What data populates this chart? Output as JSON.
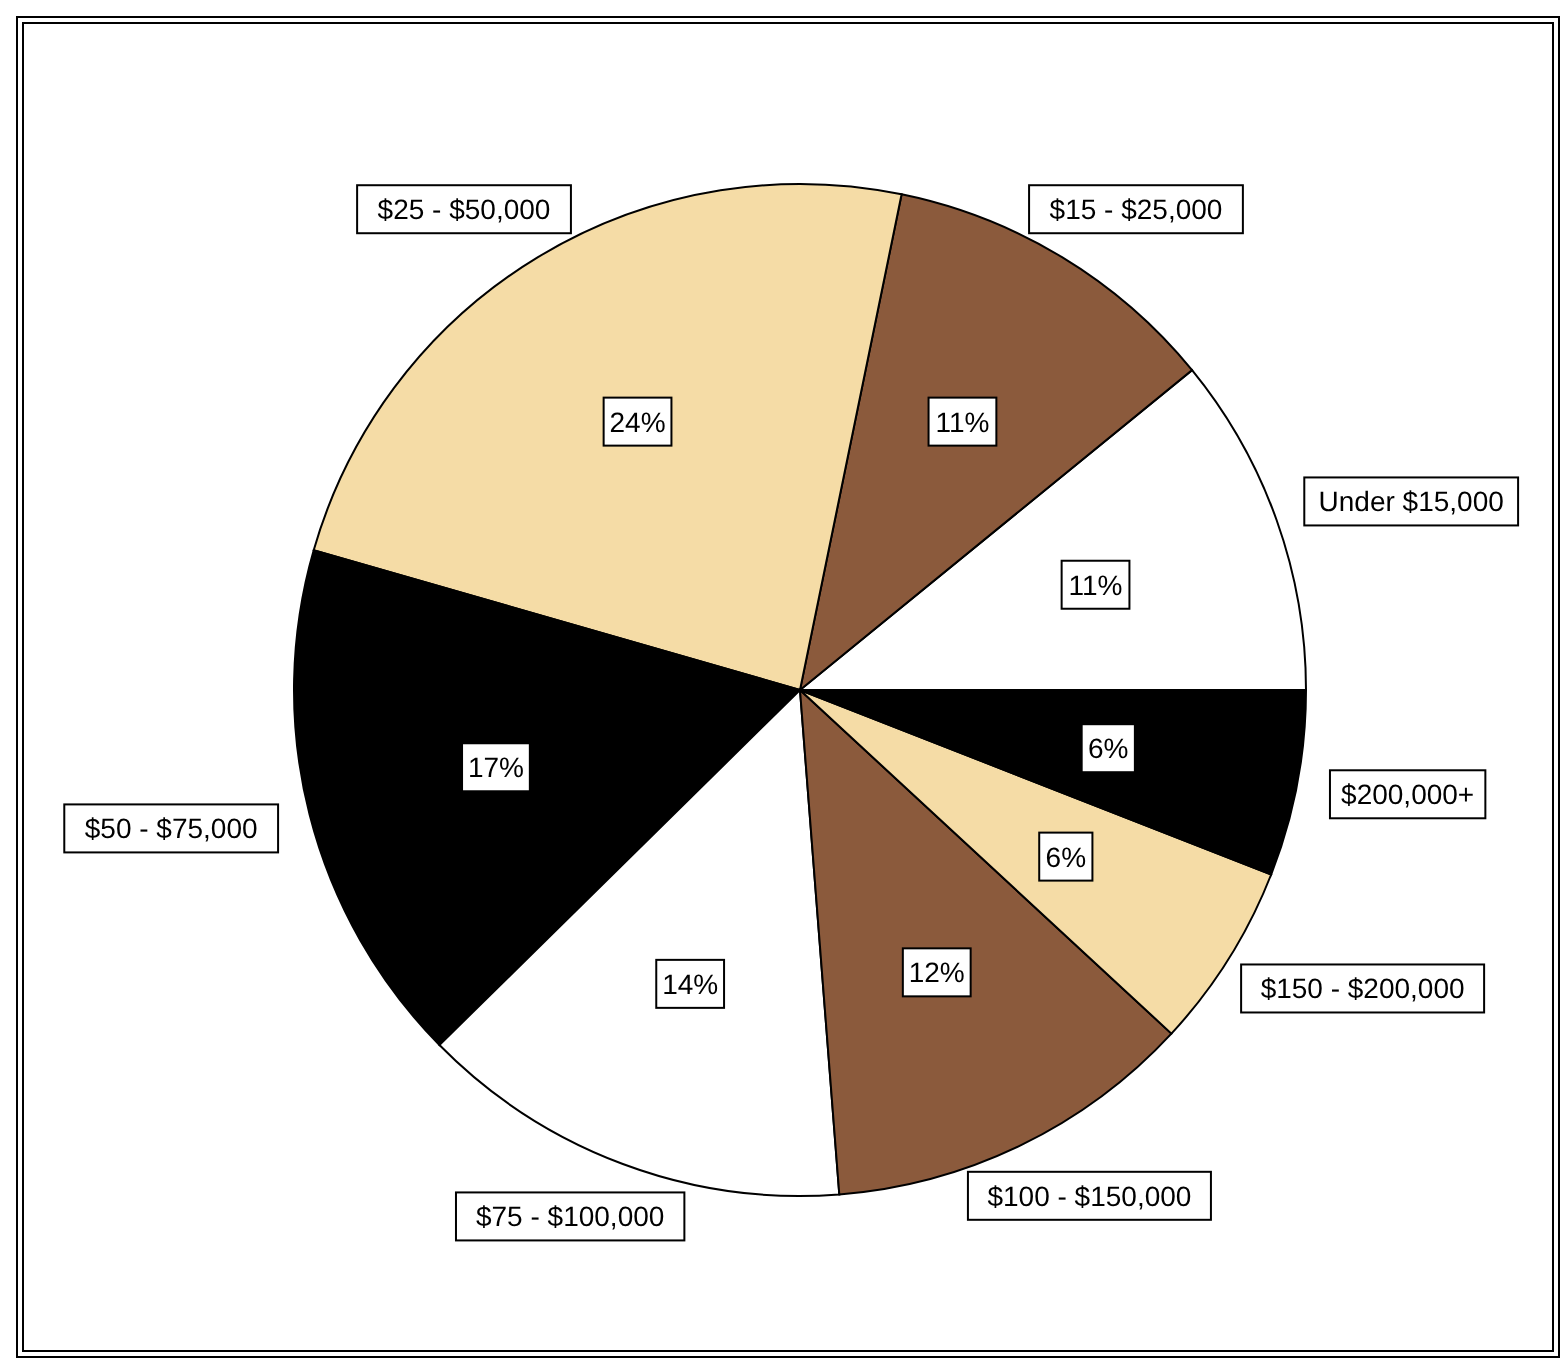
{
  "chart_data": {
    "type": "pie",
    "categories": [
      "Under $15,000",
      "$15 - $25,000",
      "$25 - $50,000",
      "$50 - $75,000",
      "$75 - $100,000",
      "$100 - $150,000",
      "$150 - $200,000",
      "$200,000+"
    ],
    "values": [
      11,
      11,
      24,
      17,
      14,
      12,
      6,
      6
    ],
    "value_labels": [
      "11%",
      "11%",
      "24%",
      "17%",
      "14%",
      "12%",
      "6%",
      "6%"
    ],
    "colors": [
      "#ffffff",
      "#8b5a3c",
      "#f5dca6",
      "#000000",
      "#ffffff",
      "#8b5a3c",
      "#f5dca6",
      "#000000"
    ]
  }
}
